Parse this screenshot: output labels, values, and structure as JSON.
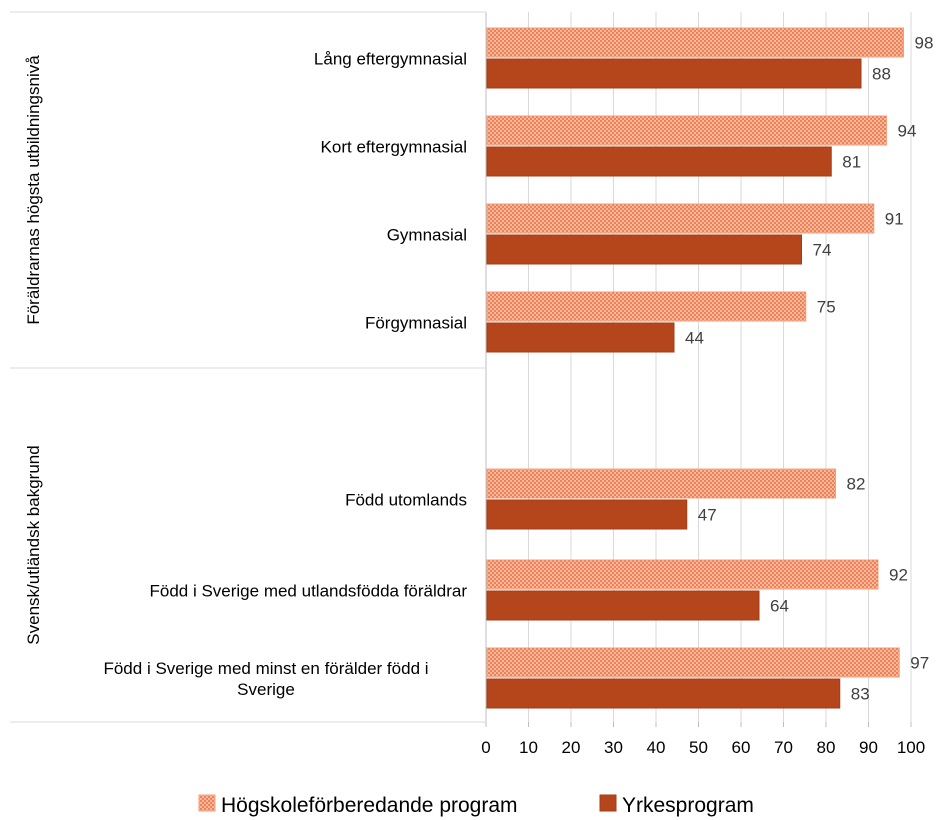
{
  "chart_data": {
    "type": "bar",
    "orientation": "horizontal",
    "xlim": [
      0,
      100
    ],
    "xticks": [
      "0",
      "10",
      "20",
      "30",
      "40",
      "50",
      "60",
      "70",
      "80",
      "90",
      "100"
    ],
    "grid": true,
    "legend_position": "bottom",
    "groups": [
      {
        "label": "Föräldrarnas högsta utbildningsnivå"
      },
      {
        "label": "Svensk/utländsk bakgrund"
      }
    ],
    "categories": [
      "Lång eftergymnasial",
      "Kort eftergymnasial",
      "Gymnasial",
      "Förgymnasial",
      "Född utomlands",
      "Född i Sverige med utlandsfödda föräldrar",
      "Född i Sverige med minst en förälder född i Sverige"
    ],
    "category_lines": [
      [
        "Lång eftergymnasial"
      ],
      [
        "Kort eftergymnasial"
      ],
      [
        "Gymnasial"
      ],
      [
        "Förgymnasial"
      ],
      [
        "Född utomlands"
      ],
      [
        "Född i Sverige med utlandsfödda föräldrar"
      ],
      [
        "Född i Sverige med minst en förälder född i",
        "Sverige"
      ]
    ],
    "series": [
      {
        "name": "Högskoleförberedande program",
        "color": "#f4a582",
        "pattern": "dotted",
        "values": [
          98,
          94,
          91,
          75,
          82,
          92,
          97
        ]
      },
      {
        "name": "Yrkesprogram",
        "color": "#b5451b",
        "pattern": "solid",
        "values": [
          88,
          81,
          74,
          44,
          47,
          64,
          83
        ]
      }
    ]
  }
}
